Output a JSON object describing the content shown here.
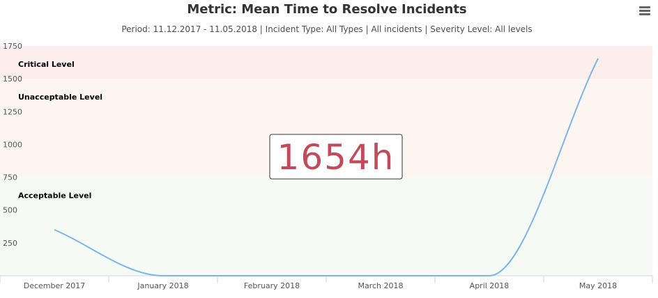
{
  "chart_data": {
    "type": "line",
    "title": "Metric: Mean Time to Resolve Incidents",
    "subtitle": "Period: 11.12.2017 - 11.05.2018 | Incident Type: All Types | All incidents | Severity Level: All levels",
    "categories": [
      "December 2017",
      "January 2018",
      "February 2018",
      "March 2018",
      "April 2018",
      "May 2018"
    ],
    "ylim": [
      0,
      1750
    ],
    "yticks": [
      250,
      500,
      750,
      1000,
      1250,
      1500,
      1750
    ],
    "series": [
      {
        "values": [
          350,
          0,
          0,
          0,
          0,
          1654
        ],
        "color": "#7cb5ec"
      }
    ],
    "bands": [
      {
        "label": "Acceptable Level",
        "from": 0,
        "to": 750,
        "color": "#f5fbf4"
      },
      {
        "label": "Unacceptable Level",
        "from": 750,
        "to": 1500,
        "color": "#fdf5f0"
      },
      {
        "label": "Critical Level",
        "from": 1500,
        "to": 1750,
        "color": "#fbeeec"
      }
    ],
    "current_value": "1654h",
    "grid": false
  },
  "menu_icon": "hamburger-menu-icon"
}
